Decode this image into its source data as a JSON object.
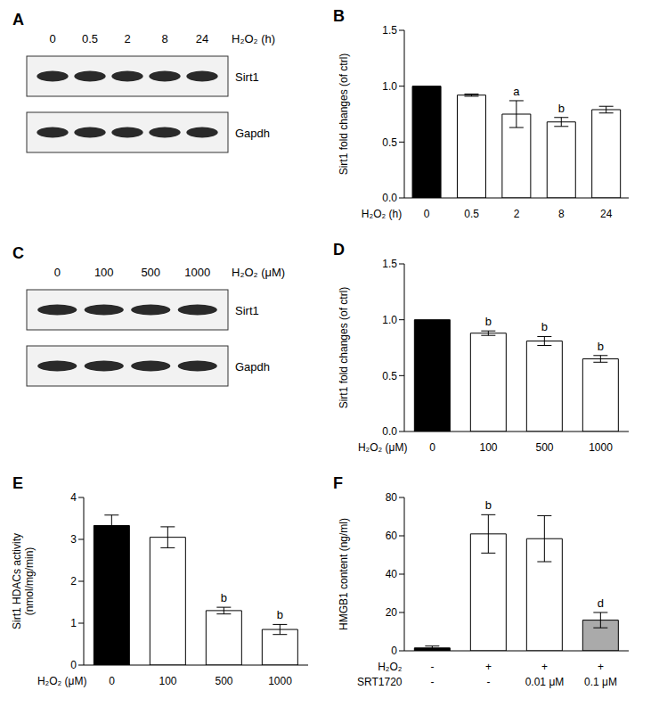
{
  "blots": [
    {
      "title": "A",
      "lanes": [
        "0",
        "0.5",
        "2",
        "8",
        "24"
      ],
      "treatment": "H₂O₂ (h)",
      "bands": [
        "Sirt1",
        "Gapdh"
      ]
    },
    {
      "title": "C",
      "lanes": [
        "0",
        "100",
        "500",
        "1000"
      ],
      "treatment": "H₂O₂ (μM)",
      "bands": [
        "Sirt1",
        "Gapdh"
      ]
    }
  ],
  "chart_data": [
    {
      "title": "B",
      "type": "bar",
      "categories": [
        "0",
        "0.5",
        "2",
        "8",
        "24"
      ],
      "x_label": "H₂O₂ (h)",
      "y_label": "Sirt1 fold changes (of ctrl)",
      "values": [
        1,
        0.92,
        0.75,
        0.68,
        0.79
      ],
      "errors": [
        0,
        0.01,
        0.12,
        0.04,
        0.03
      ],
      "annotations": [
        null,
        null,
        "a",
        "b",
        null
      ],
      "colors": [
        "#000000",
        "#ffffff",
        "#ffffff",
        "#ffffff",
        "#ffffff"
      ],
      "ylim": [
        0,
        1.5
      ],
      "yticks": [
        {
          "value": 0,
          "label": "0.0"
        },
        {
          "value": 0.5,
          "label": "0.5"
        },
        {
          "value": 1,
          "label": "1.0"
        },
        {
          "value": 1.5,
          "label": "1.5"
        }
      ]
    },
    {
      "title": "D",
      "type": "bar",
      "categories": [
        "0",
        "100",
        "500",
        "1000"
      ],
      "x_label": "H₂O₂ (μM)",
      "y_label": "Sirt1 fold changes (of ctrl)",
      "values": [
        1,
        0.88,
        0.81,
        0.65
      ],
      "errors": [
        0,
        0.02,
        0.04,
        0.03
      ],
      "annotations": [
        null,
        "b",
        "b",
        "b"
      ],
      "colors": [
        "#000000",
        "#ffffff",
        "#ffffff",
        "#ffffff"
      ],
      "ylim": [
        0,
        1.5
      ],
      "yticks": [
        {
          "value": 0,
          "label": "0.0"
        },
        {
          "value": 0.5,
          "label": "0.5"
        },
        {
          "value": 1,
          "label": "1.0"
        },
        {
          "value": 1.5,
          "label": "1.5"
        }
      ]
    },
    {
      "title": "E",
      "type": "bar",
      "categories": [
        "0",
        "100",
        "500",
        "1000"
      ],
      "x_label": "H₂O₂ (μM)",
      "y_label": "Sirt1 HDACs activity (nmol/mg/min)",
      "values": [
        3.33,
        3.05,
        1.3,
        0.85
      ],
      "errors": [
        0.25,
        0.25,
        0.08,
        0.12
      ],
      "annotations": [
        null,
        null,
        "b",
        "b"
      ],
      "colors": [
        "#000000",
        "#ffffff",
        "#ffffff",
        "#ffffff"
      ],
      "ylim": [
        0,
        4
      ],
      "yticks": [
        0,
        1,
        2,
        3,
        4
      ]
    },
    {
      "title": "F",
      "type": "bar",
      "categories": [
        null,
        null,
        null,
        null
      ],
      "x_rows": [
        {
          "name": "H₂O₂",
          "labels": [
            "-",
            "+",
            "+",
            "+"
          ]
        },
        {
          "name": "SRT1720",
          "labels": [
            "-",
            "-",
            "0.01 μM",
            "0.1 μM"
          ]
        }
      ],
      "y_label": "HMGB1 content (ng/ml)",
      "values": [
        1.5,
        61,
        58.5,
        16
      ],
      "errors": [
        1,
        10,
        12,
        4
      ],
      "annotations": [
        null,
        "b",
        null,
        "d"
      ],
      "colors": [
        "#000000",
        "#ffffff",
        "#ffffff",
        "#aaaaaa"
      ],
      "ylim": [
        0,
        80
      ],
      "yticks": [
        0,
        20,
        40,
        60,
        80
      ]
    }
  ]
}
